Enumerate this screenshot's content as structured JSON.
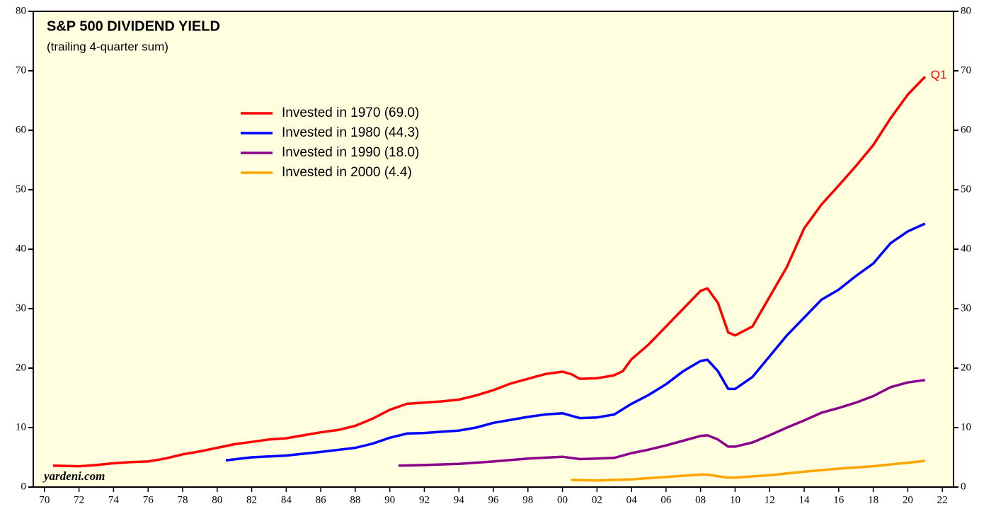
{
  "chart_data": {
    "type": "line",
    "title": "S&P 500 DIVIDEND YIELD",
    "subtitle": "(trailing 4-quarter sum)",
    "annotations": {
      "end_label": "Q1",
      "source": "yardeni.com"
    },
    "series": [
      {
        "name": "Invested in 1970 (69.0)",
        "color": "#ff0000",
        "x": [
          1970.5,
          1972,
          1973,
          1974,
          1975,
          1976,
          1977,
          1978,
          1979,
          1980,
          1981,
          1982,
          1983,
          1984,
          1985,
          1986,
          1987,
          1988,
          1989,
          1990,
          1991,
          1992,
          1993,
          1994,
          1995,
          1996,
          1997,
          1998,
          1999,
          2000,
          2000.5,
          2001,
          2002,
          2003,
          2003.5,
          2004,
          2005,
          2006,
          2007,
          2008,
          2008.4,
          2009,
          2009.6,
          2010,
          2011,
          2012,
          2013,
          2014,
          2015,
          2016,
          2017,
          2018,
          2019,
          2020,
          2021
        ],
        "values": [
          3.6,
          3.5,
          3.7,
          4.0,
          4.2,
          4.3,
          4.8,
          5.5,
          6.0,
          6.6,
          7.2,
          7.6,
          8.0,
          8.2,
          8.7,
          9.2,
          9.6,
          10.3,
          11.5,
          13.0,
          14.0,
          14.2,
          14.4,
          14.7,
          15.4,
          16.3,
          17.4,
          18.2,
          19.0,
          19.4,
          19.0,
          18.2,
          18.3,
          18.8,
          19.5,
          21.5,
          24.0,
          27.0,
          30.0,
          33.0,
          33.4,
          31.0,
          26.0,
          25.5,
          27.0,
          32.0,
          37.0,
          43.5,
          47.5,
          50.7,
          54.0,
          57.5,
          62.0,
          66.0,
          69.0
        ]
      },
      {
        "name": "Invested in 1980 (44.3)",
        "color": "#0000ff",
        "x": [
          1980.5,
          1982,
          1984,
          1986,
          1988,
          1989,
          1990,
          1991,
          1992,
          1994,
          1995,
          1996,
          1997,
          1998,
          1999,
          2000,
          2001,
          2002,
          2003,
          2004,
          2005,
          2006,
          2007,
          2008,
          2008.4,
          2009,
          2009.6,
          2010,
          2011,
          2012,
          2013,
          2014,
          2015,
          2016,
          2017,
          2018,
          2019,
          2020,
          2021
        ],
        "values": [
          4.5,
          5.0,
          5.3,
          5.9,
          6.6,
          7.3,
          8.3,
          9.0,
          9.1,
          9.5,
          10.0,
          10.8,
          11.3,
          11.8,
          12.2,
          12.4,
          11.6,
          11.7,
          12.2,
          14.0,
          15.5,
          17.3,
          19.5,
          21.2,
          21.4,
          19.5,
          16.5,
          16.5,
          18.5,
          22.0,
          25.5,
          28.5,
          31.5,
          33.2,
          35.5,
          37.6,
          41.0,
          43.0,
          44.3
        ]
      },
      {
        "name": "Invested in 1990 (18.0)",
        "color": "#8b008b",
        "x": [
          1990.5,
          1992,
          1994,
          1996,
          1998,
          2000,
          2001,
          2002,
          2003,
          2004,
          2005,
          2006,
          2007,
          2008,
          2008.4,
          2009,
          2009.6,
          2010,
          2011,
          2012,
          2013,
          2014,
          2015,
          2016,
          2017,
          2018,
          2019,
          2020,
          2021
        ],
        "values": [
          3.6,
          3.7,
          3.9,
          4.3,
          4.8,
          5.1,
          4.7,
          4.8,
          4.9,
          5.7,
          6.3,
          7.0,
          7.8,
          8.6,
          8.7,
          8.0,
          6.8,
          6.8,
          7.5,
          8.7,
          10.0,
          11.2,
          12.5,
          13.3,
          14.2,
          15.3,
          16.8,
          17.6,
          18.0
        ]
      },
      {
        "name": "Invested in 2000 (4.4)",
        "color": "#ffa500",
        "x": [
          2000.5,
          2002,
          2004,
          2006,
          2008,
          2008.4,
          2009.5,
          2010,
          2012,
          2014,
          2016,
          2018,
          2020,
          2021
        ],
        "values": [
          1.2,
          1.1,
          1.3,
          1.7,
          2.1,
          2.1,
          1.6,
          1.6,
          2.0,
          2.6,
          3.1,
          3.5,
          4.1,
          4.4
        ]
      }
    ],
    "xlim": [
      1969.35,
      2022.65
    ],
    "xticks": [
      {
        "value": 1970,
        "label": "70"
      },
      {
        "value": 1972,
        "label": "72"
      },
      {
        "value": 1974,
        "label": "74"
      },
      {
        "value": 1976,
        "label": "76"
      },
      {
        "value": 1978,
        "label": "78"
      },
      {
        "value": 1980,
        "label": "80"
      },
      {
        "value": 1982,
        "label": "82"
      },
      {
        "value": 1984,
        "label": "84"
      },
      {
        "value": 1986,
        "label": "86"
      },
      {
        "value": 1988,
        "label": "88"
      },
      {
        "value": 1990,
        "label": "90"
      },
      {
        "value": 1992,
        "label": "92"
      },
      {
        "value": 1994,
        "label": "94"
      },
      {
        "value": 1996,
        "label": "96"
      },
      {
        "value": 1998,
        "label": "98"
      },
      {
        "value": 2000,
        "label": "00"
      },
      {
        "value": 2002,
        "label": "02"
      },
      {
        "value": 2004,
        "label": "04"
      },
      {
        "value": 2006,
        "label": "06"
      },
      {
        "value": 2008,
        "label": "08"
      },
      {
        "value": 2010,
        "label": "10"
      },
      {
        "value": 2012,
        "label": "12"
      },
      {
        "value": 2014,
        "label": "14"
      },
      {
        "value": 2016,
        "label": "16"
      },
      {
        "value": 2018,
        "label": "18"
      },
      {
        "value": 2020,
        "label": "20"
      },
      {
        "value": 2022,
        "label": "22"
      }
    ],
    "ylim": [
      0,
      80
    ],
    "yticks": [
      0,
      10,
      20,
      30,
      40,
      50,
      60,
      70,
      80
    ],
    "grid": false
  }
}
